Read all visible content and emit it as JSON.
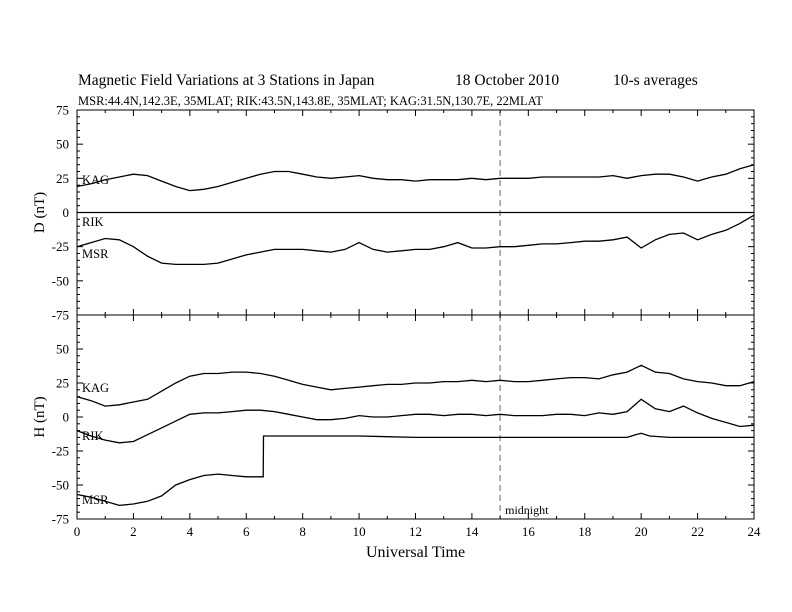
{
  "header": {
    "title": "Magnetic Field Variations at 3 Stations in Japan",
    "date": "18  October 2010",
    "averaging": "10-s averages",
    "stations_line": "MSR:44.4N,142.3E, 35MLAT;  RIK:43.5N,143.8E, 35MLAT;  KAG:31.5N,130.7E, 22MLAT"
  },
  "chart_data": [
    {
      "type": "line",
      "panel": "D",
      "ylabel": "D (nT)",
      "ylim": [
        -75,
        75
      ],
      "yticks": [
        -75,
        -50,
        -25,
        0,
        25,
        50,
        75
      ],
      "xlim": [
        0,
        24
      ],
      "midnight_line_x": 15,
      "series": [
        {
          "name": "KAG",
          "x": [
            0,
            0.5,
            1,
            1.5,
            2,
            2.5,
            3,
            3.5,
            4,
            4.5,
            5,
            5.5,
            6,
            6.5,
            7,
            7.5,
            8,
            8.5,
            9,
            9.5,
            10,
            10.5,
            11,
            11.5,
            12,
            12.5,
            13,
            13.5,
            14,
            14.5,
            15,
            15.5,
            16,
            16.5,
            17,
            17.5,
            18,
            18.5,
            19,
            19.5,
            20,
            20.5,
            21,
            21.5,
            22,
            22.5,
            23,
            23.5,
            24
          ],
          "values": [
            19,
            21,
            24,
            26,
            28,
            27,
            23,
            19,
            16,
            17,
            19,
            22,
            25,
            28,
            30,
            30,
            28,
            26,
            25,
            26,
            27,
            25,
            24,
            24,
            23,
            24,
            24,
            24,
            25,
            24,
            25,
            25,
            25,
            26,
            26,
            26,
            26,
            26,
            27,
            25,
            27,
            28,
            28,
            26,
            23,
            26,
            28,
            32,
            35
          ]
        },
        {
          "name": "RIK",
          "x": [
            0,
            24
          ],
          "values": [
            0,
            0
          ]
        },
        {
          "name": "MSR",
          "x": [
            0,
            0.5,
            1,
            1.5,
            2,
            2.5,
            3,
            3.5,
            4,
            4.5,
            5,
            5.5,
            6,
            6.5,
            7,
            7.5,
            8,
            8.5,
            9,
            9.5,
            10,
            10.5,
            11,
            11.5,
            12,
            12.5,
            13,
            13.5,
            14,
            14.5,
            15,
            15.5,
            16,
            16.5,
            17,
            17.5,
            18,
            18.5,
            19,
            19.5,
            20,
            20.5,
            21,
            21.5,
            22,
            22.5,
            23,
            23.5,
            24
          ],
          "values": [
            -25,
            -22,
            -19,
            -20,
            -25,
            -32,
            -37,
            -38,
            -38,
            -38,
            -37,
            -34,
            -31,
            -29,
            -27,
            -27,
            -27,
            -28,
            -29,
            -27,
            -22,
            -27,
            -29,
            -28,
            -27,
            -27,
            -25,
            -22,
            -26,
            -26,
            -25,
            -25,
            -24,
            -23,
            -23,
            -22,
            -21,
            -21,
            -20,
            -18,
            -26,
            -20,
            -16,
            -15,
            -20,
            -16,
            -13,
            -8,
            -2
          ]
        }
      ]
    },
    {
      "type": "line",
      "panel": "H",
      "ylabel": "H (nT)",
      "ylim": [
        -75,
        75
      ],
      "yticks": [
        -75,
        -50,
        -25,
        0,
        25,
        50,
        75
      ],
      "xlabel": "Universal Time",
      "xlim": [
        0,
        24
      ],
      "xticks": [
        0,
        2,
        4,
        6,
        8,
        10,
        12,
        14,
        16,
        18,
        20,
        22,
        24
      ],
      "midnight_line_x": 15,
      "annotation": "midnight",
      "series": [
        {
          "name": "KAG",
          "x": [
            0,
            0.5,
            1,
            1.5,
            2,
            2.5,
            3,
            3.5,
            4,
            4.5,
            5,
            5.5,
            6,
            6.5,
            7,
            7.5,
            8,
            8.5,
            9,
            9.5,
            10,
            10.5,
            11,
            11.5,
            12,
            12.5,
            13,
            13.5,
            14,
            14.5,
            15,
            15.5,
            16,
            16.5,
            17,
            17.5,
            18,
            18.5,
            19,
            19.5,
            20,
            20.5,
            21,
            21.5,
            22,
            22.5,
            23,
            23.5,
            24
          ],
          "values": [
            15,
            12,
            8,
            9,
            11,
            13,
            19,
            25,
            30,
            32,
            32,
            33,
            33,
            32,
            30,
            27,
            24,
            22,
            20,
            21,
            22,
            23,
            24,
            24,
            25,
            25,
            26,
            26,
            27,
            26,
            27,
            26,
            26,
            27,
            28,
            29,
            29,
            28,
            31,
            33,
            38,
            33,
            32,
            28,
            26,
            25,
            23,
            23,
            26
          ]
        },
        {
          "name": "RIK",
          "x": [
            0,
            0.5,
            1,
            1.5,
            2,
            2.5,
            3,
            3.5,
            4,
            4.5,
            5,
            5.5,
            6,
            6.5,
            7,
            7.5,
            8,
            8.5,
            9,
            9.5,
            10,
            10.5,
            11,
            11.5,
            12,
            12.5,
            13,
            13.5,
            14,
            14.5,
            15,
            15.5,
            16,
            16.5,
            17,
            17.5,
            18,
            18.5,
            19,
            19.5,
            20,
            20.5,
            21,
            21.5,
            22,
            22.5,
            23,
            23.5,
            24
          ],
          "values": [
            -10,
            -14,
            -17,
            -19,
            -18,
            -13,
            -8,
            -3,
            2,
            3,
            3,
            4,
            5,
            5,
            4,
            2,
            0,
            -2,
            -2,
            -1,
            1,
            0,
            0,
            1,
            2,
            2,
            1,
            2,
            2,
            1,
            2,
            1,
            1,
            1,
            2,
            2,
            1,
            3,
            2,
            4,
            13,
            6,
            4,
            8,
            3,
            -1,
            -4,
            -7,
            -6
          ]
        },
        {
          "name": "MSR",
          "x": [
            0,
            0.5,
            1,
            1.5,
            2,
            2.5,
            3,
            3.5,
            4,
            4.5,
            5,
            5.5,
            6,
            6.6,
            6.61,
            7,
            8,
            10,
            12,
            14,
            15,
            16,
            18,
            19,
            19.5,
            19.8,
            20,
            20.3,
            21,
            22,
            24
          ],
          "values": [
            -57,
            -59,
            -62,
            -65,
            -64,
            -62,
            -58,
            -50,
            -46,
            -43,
            -42,
            -43,
            -44,
            -44,
            -14,
            -14,
            -14,
            -14,
            -15,
            -15,
            -15,
            -15,
            -15,
            -15,
            -15,
            -13,
            -12,
            -14,
            -15,
            -15,
            -15
          ]
        }
      ]
    }
  ]
}
